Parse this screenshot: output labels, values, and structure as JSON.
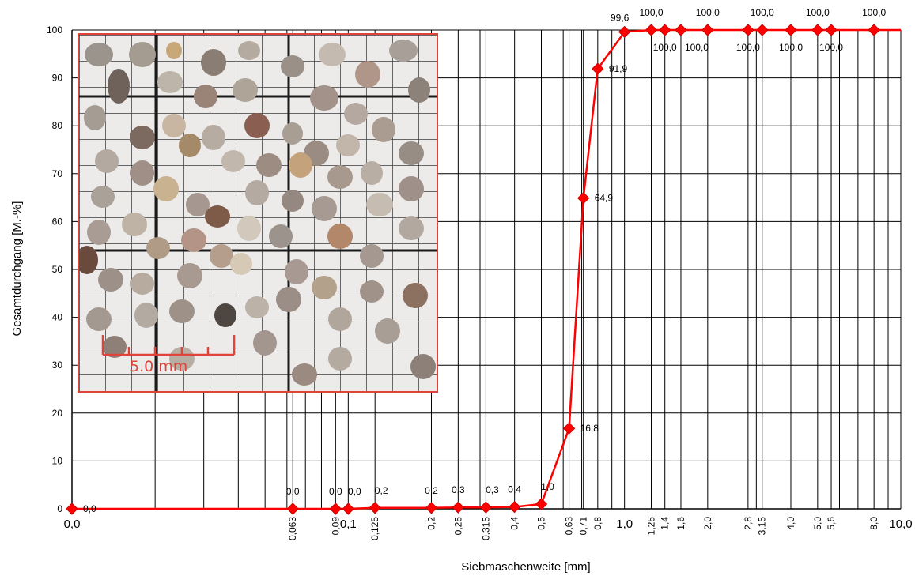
{
  "chart_data": {
    "type": "line",
    "xlabel": "Siebmaschenweite  [mm]",
    "ylabel": "Gesamtdurchgang  [M.-%]",
    "xscale": "log",
    "xlim": [
      0.01,
      10.0
    ],
    "ylim": [
      0,
      100
    ],
    "grid": true,
    "y_ticks": [
      "0",
      "10",
      "20",
      "30",
      "40",
      "50",
      "60",
      "70",
      "80",
      "90",
      "100"
    ],
    "x_major_ticks": [
      {
        "x": 0.01,
        "label": "0,0"
      },
      {
        "x": 0.1,
        "label": "0,1"
      },
      {
        "x": 1.0,
        "label": "1,0"
      },
      {
        "x": 10.0,
        "label": "10,0"
      }
    ],
    "x_sieve_ticks": [
      {
        "x": 0.063,
        "label": "0,063"
      },
      {
        "x": 0.09,
        "label": "0,09"
      },
      {
        "x": 0.125,
        "label": "0,125"
      },
      {
        "x": 0.2,
        "label": "0,2"
      },
      {
        "x": 0.25,
        "label": "0,25"
      },
      {
        "x": 0.315,
        "label": "0,315"
      },
      {
        "x": 0.4,
        "label": "0,4"
      },
      {
        "x": 0.5,
        "label": "0,5"
      },
      {
        "x": 0.63,
        "label": "0,63"
      },
      {
        "x": 0.71,
        "label": "0,71"
      },
      {
        "x": 0.8,
        "label": "0,8"
      },
      {
        "x": 1.25,
        "label": "1,25"
      },
      {
        "x": 1.4,
        "label": "1,4"
      },
      {
        "x": 1.6,
        "label": "1,6"
      },
      {
        "x": 2.0,
        "label": "2,0"
      },
      {
        "x": 2.8,
        "label": "2,8"
      },
      {
        "x": 3.15,
        "label": "3,15"
      },
      {
        "x": 4.0,
        "label": "4,0"
      },
      {
        "x": 5.0,
        "label": "5,0"
      },
      {
        "x": 5.6,
        "label": "5,6"
      },
      {
        "x": 8.0,
        "label": "8,0"
      }
    ],
    "series": [
      {
        "color": "#ff0000",
        "points": [
          {
            "x": 0.01,
            "y": 0.0,
            "label": "0,0",
            "pos": "right"
          },
          {
            "x": 0.063,
            "y": 0.0,
            "label": "0,0",
            "pos": "above"
          },
          {
            "x": 0.09,
            "y": 0.0,
            "label": "0,0",
            "pos": "above"
          },
          {
            "x": 0.1,
            "y": 0.0,
            "label": "0,0",
            "pos": "above-right"
          },
          {
            "x": 0.125,
            "y": 0.2,
            "label": "0,2",
            "pos": "above-right"
          },
          {
            "x": 0.2,
            "y": 0.2,
            "label": "0,2",
            "pos": "above"
          },
          {
            "x": 0.25,
            "y": 0.3,
            "label": "0,3",
            "pos": "above"
          },
          {
            "x": 0.315,
            "y": 0.3,
            "label": "0,3",
            "pos": "above-right"
          },
          {
            "x": 0.4,
            "y": 0.4,
            "label": "0,4",
            "pos": "above"
          },
          {
            "x": 0.5,
            "y": 1.0,
            "label": "1,0",
            "pos": "above-right"
          },
          {
            "x": 0.63,
            "y": 16.8,
            "label": "16,8",
            "pos": "right"
          },
          {
            "x": 0.71,
            "y": 64.9,
            "label": "64,9",
            "pos": "right"
          },
          {
            "x": 0.8,
            "y": 91.9,
            "label": "91,9",
            "pos": "right"
          },
          {
            "x": 1.0,
            "y": 99.6,
            "label": "99,6",
            "pos": "above-left"
          },
          {
            "x": 1.25,
            "y": 100.0,
            "label": "100,0",
            "pos": "above"
          },
          {
            "x": 1.4,
            "y": 100.0,
            "label": "100,0",
            "pos": "below"
          },
          {
            "x": 1.6,
            "y": 100.0,
            "label": "",
            "pos": "above"
          },
          {
            "x": 2.0,
            "y": 100.0,
            "label": "100,0",
            "pos": "above"
          },
          {
            "x": 2.8,
            "y": 100.0,
            "label": "100,0",
            "pos": "below"
          },
          {
            "x": 3.15,
            "y": 100.0,
            "label": "100,0",
            "pos": "above"
          },
          {
            "x": 4.0,
            "y": 100.0,
            "label": "100,0",
            "pos": "below"
          },
          {
            "x": 5.0,
            "y": 100.0,
            "label": "100,0",
            "pos": "above"
          },
          {
            "x": 5.6,
            "y": 100.0,
            "label": "100,0",
            "pos": "below"
          },
          {
            "x": 8.0,
            "y": 100.0,
            "label": "100,0",
            "pos": "above"
          }
        ],
        "extra_label": {
          "x": 1.6,
          "label": "100,0",
          "pos": "below-left"
        }
      }
    ],
    "inset_photo": {
      "scale_bar_label": "5.0 mm",
      "accent_color": "#e0433a"
    }
  }
}
